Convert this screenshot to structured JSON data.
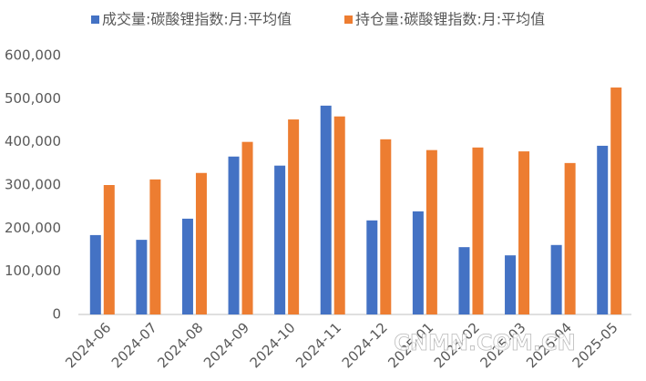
{
  "chart_data": {
    "type": "bar",
    "categories": [
      "2024-06",
      "2024-07",
      "2024-08",
      "2024-09",
      "2024-10",
      "2024-11",
      "2024-12",
      "2025-01",
      "2025-02",
      "2025-03",
      "2025-04",
      "2025-05"
    ],
    "series": [
      {
        "name": "成交量:碳酸锂指数:月:平均值",
        "color": "#4472c4",
        "values": [
          184000,
          173000,
          222000,
          366000,
          345000,
          484000,
          218000,
          239000,
          156000,
          137000,
          161000,
          391000
        ]
      },
      {
        "name": "持仓量:碳酸锂指数:月:平均值",
        "color": "#ed7d31",
        "values": [
          300000,
          313000,
          328000,
          400000,
          452000,
          459000,
          406000,
          381000,
          387000,
          378000,
          351000,
          526000
        ]
      }
    ],
    "ylim": [
      0,
      600000
    ],
    "yticks": [
      0,
      {
        "value": 100000,
        "label": "100,000"
      },
      {
        "value": 200000,
        "label": "200,000"
      },
      {
        "value": 300000,
        "label": "300,000"
      },
      {
        "value": 400000,
        "label": "400,000"
      },
      {
        "value": 500000,
        "label": "500,000"
      },
      {
        "value": 600000,
        "label": "600,000"
      }
    ],
    "grid": false,
    "legend": "top",
    "watermark": "CNMN.COM.CN"
  }
}
